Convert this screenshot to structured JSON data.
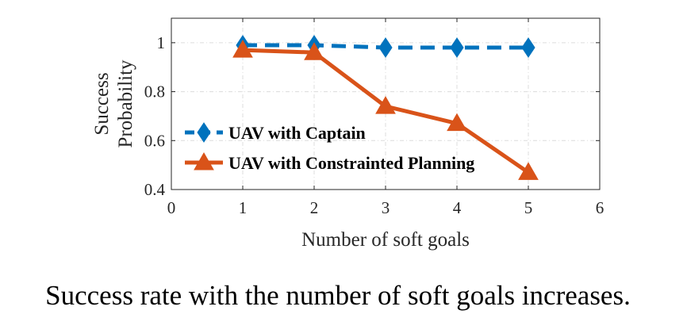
{
  "chart_data": {
    "type": "line",
    "title": "",
    "xlabel": "Number of soft goals",
    "ylabel_lines": [
      "Success",
      "Probability"
    ],
    "xlim": [
      0,
      6
    ],
    "ylim": [
      0.4,
      1.1
    ],
    "xticks": [
      0,
      1,
      2,
      3,
      4,
      5,
      6
    ],
    "yticks": [
      0.4,
      0.6,
      0.8,
      1
    ],
    "xtick_labels": [
      "0",
      "1",
      "2",
      "3",
      "4",
      "5",
      "6"
    ],
    "ytick_labels": [
      "0.4",
      "0.6",
      "0.8",
      "1"
    ],
    "grid": true,
    "legend_position": "lower-left",
    "series": [
      {
        "name": "UAV with Captain",
        "x": [
          1,
          2,
          3,
          4,
          5
        ],
        "y": [
          0.99,
          0.99,
          0.98,
          0.98,
          0.98
        ],
        "color": "#0072BD",
        "line_style": "dashed",
        "marker": "diamond"
      },
      {
        "name": "UAV with Constrainted Planning",
        "x": [
          1,
          2,
          3,
          4,
          5
        ],
        "y": [
          0.97,
          0.96,
          0.74,
          0.67,
          0.47
        ],
        "color": "#D95319",
        "line_style": "solid",
        "marker": "triangle"
      }
    ]
  },
  "caption": "Success rate with the number of soft goals increases."
}
